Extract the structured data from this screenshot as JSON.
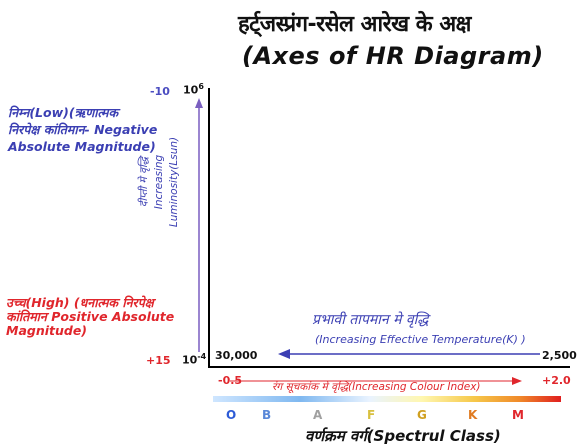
{
  "title": {
    "hindi": "हर्ट्जस्प्रंग-रसेल आरेख  के अक्ष",
    "english": "(Axes of HR Diagram)"
  },
  "left_notes": {
    "negative_magnitude": [
      "निम्न(Low)(ऋणात्मक",
      "निरपेक्ष कांतिमान- Negative",
      "Absolute Magnitude)"
    ],
    "positive_magnitude": [
      "उच्च(High) (धनात्मक निरपेक्ष",
      "कांतिमान Positive Absolute",
      "Magnitude)"
    ]
  },
  "y_axis": {
    "magnitude_top": "-10",
    "magnitude_bottom": "+15",
    "luminosity_top": "10^6",
    "luminosity_bottom": "10^-4",
    "label_hindi": "दीप्ती मे वृद्धि",
    "label_english_1": "Increasing",
    "label_english_2": "Luminosity(Lsun)"
  },
  "temperature": {
    "increase_hindi": "प्रभावी तापमान मे वृद्धि",
    "increase_english": "(Increasing Effective Temperature(K) )",
    "left_value": "30,000",
    "right_value": "2,500"
  },
  "colour_index": {
    "left_value": "-0.5",
    "right_value": "+2.0",
    "label": "रंग सूचकांक मे वृद्धि(Increasing Colour Index)"
  },
  "spectral": {
    "classes": [
      {
        "letter": "O",
        "color": "#2d5bd6"
      },
      {
        "letter": "B",
        "color": "#5a88d8"
      },
      {
        "letter": "A",
        "color": "#a0a0a0"
      },
      {
        "letter": "F",
        "color": "#d8c040"
      },
      {
        "letter": "G",
        "color": "#d0a020"
      },
      {
        "letter": "K",
        "color": "#e07a20"
      },
      {
        "letter": "M",
        "color": "#e0262c"
      }
    ],
    "label": "वर्णक्रम वर्ग(Spectrul Class)"
  },
  "colors": {
    "blue": "#3b3fb3",
    "red": "#e0262c",
    "arrow_purple": "#7a5fc0"
  }
}
